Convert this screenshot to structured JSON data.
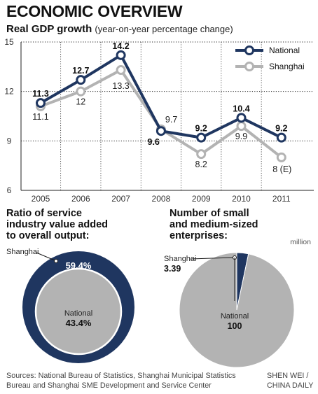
{
  "header": {
    "title": "ECONOMIC OVERVIEW",
    "subtitle": "Real GDP growth",
    "subtitle_note": "(year-on-year percentage change)"
  },
  "colors": {
    "national": "#1f3660",
    "shanghai": "#b3b3b3",
    "grid": "#222222"
  },
  "chart_data": [
    {
      "type": "line",
      "title": "Real GDP growth",
      "x": [
        "2005",
        "2006",
        "2007",
        "2008",
        "2009",
        "2010",
        "2011"
      ],
      "ylim": [
        6,
        15
      ],
      "yticks": [
        6,
        9,
        12,
        15
      ],
      "grid": "horizontal dotted",
      "legend": "top-right",
      "series": [
        {
          "name": "National",
          "values": [
            11.3,
            12.7,
            14.2,
            9.6,
            9.2,
            10.4,
            9.2
          ],
          "labels": [
            "11.3",
            "12.7",
            "14.2",
            "9.6",
            "9.2",
            "10.4",
            "9.2"
          ]
        },
        {
          "name": "Shanghai",
          "values": [
            11.1,
            12,
            13.3,
            9.7,
            8.2,
            9.9,
            8
          ],
          "labels": [
            "11.1",
            "12",
            "13.3",
            "9.7",
            "8.2",
            "9.9",
            "8 (E)"
          ]
        }
      ]
    },
    {
      "type": "pie",
      "title_lines": [
        "Ratio of service",
        "industry value added",
        "to overall output:"
      ],
      "style": "nested circles",
      "slices": [
        {
          "name": "Shanghai",
          "value": 59.4,
          "label": "59.4%"
        },
        {
          "name": "National",
          "value": 43.4,
          "label": "43.4%"
        }
      ]
    },
    {
      "type": "pie",
      "title_lines": [
        "Number of small",
        "and medium-sized",
        "enterprises:"
      ],
      "unit": "million",
      "slices": [
        {
          "name": "Shanghai",
          "value": 3.39,
          "label": "3.39"
        },
        {
          "name": "National",
          "value": 100,
          "label": "100"
        }
      ]
    }
  ],
  "footer": {
    "sources": "Sources: National Bureau of Statistics, Shanghai Municipal Statistics Bureau and Shanghai SME Development and Service Center",
    "credit_line1": "SHEN WEI /",
    "credit_line2": "CHINA DAILY"
  }
}
